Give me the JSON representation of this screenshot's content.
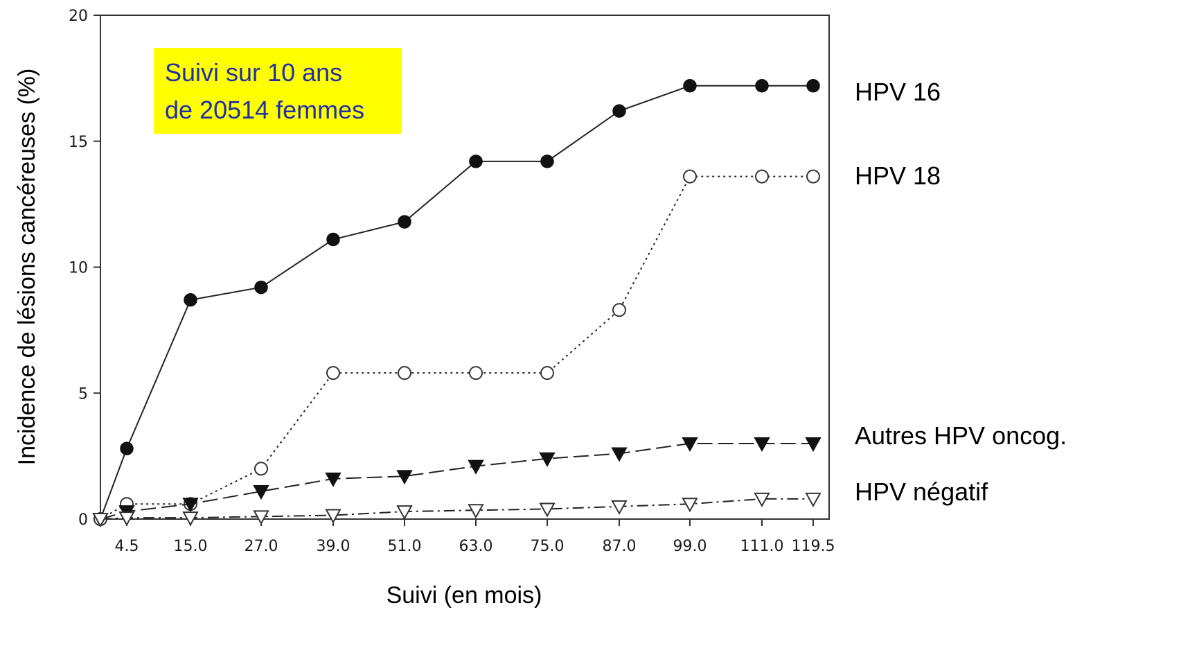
{
  "chart_data": {
    "type": "line",
    "title": "",
    "xlabel": "Suivi (en mois)",
    "ylabel": "Incidence de lésions cancéreuses (%)",
    "ylim": [
      0,
      20
    ],
    "yticks": [
      "0",
      "5",
      "10",
      "15",
      "20"
    ],
    "x": [
      0,
      4.5,
      15.0,
      27.0,
      39.0,
      51.0,
      63.0,
      75.0,
      87.0,
      99.0,
      111.0,
      119.5
    ],
    "xtick_labels": [
      "4.5",
      "15.0",
      "27.0",
      "39.0",
      "51.0",
      "63.0",
      "75.0",
      "87.0",
      "99.0",
      "111.0",
      "119.5"
    ],
    "grid": false,
    "annotation": {
      "line1": "Suivi sur 10 ans",
      "line2": "de 20514 femmes",
      "background": "#ffff00",
      "text_color": "#1f2fa8"
    },
    "series": [
      {
        "name": "HPV 16",
        "marker": "filled-circle",
        "line_style": "solid",
        "values": [
          0,
          2.8,
          8.7,
          9.2,
          11.1,
          11.8,
          14.2,
          14.2,
          16.2,
          17.2,
          17.2,
          17.2
        ]
      },
      {
        "name": "HPV 18",
        "marker": "open-circle",
        "line_style": "dotted",
        "values": [
          0,
          0.6,
          0.6,
          2.0,
          5.8,
          5.8,
          5.8,
          5.8,
          8.3,
          13.6,
          13.6,
          13.6
        ]
      },
      {
        "name": "Autres HPV oncog.",
        "marker": "filled-triangle",
        "line_style": "dashed",
        "values": [
          0,
          0.3,
          0.6,
          1.1,
          1.6,
          1.7,
          2.1,
          2.4,
          2.6,
          3.0,
          3.0,
          3.0
        ]
      },
      {
        "name": "HPV négatif",
        "marker": "open-triangle",
        "line_style": "dash-dot",
        "values": [
          0,
          0.05,
          0.05,
          0.1,
          0.15,
          0.3,
          0.35,
          0.4,
          0.5,
          0.6,
          0.8,
          0.8
        ]
      }
    ]
  }
}
